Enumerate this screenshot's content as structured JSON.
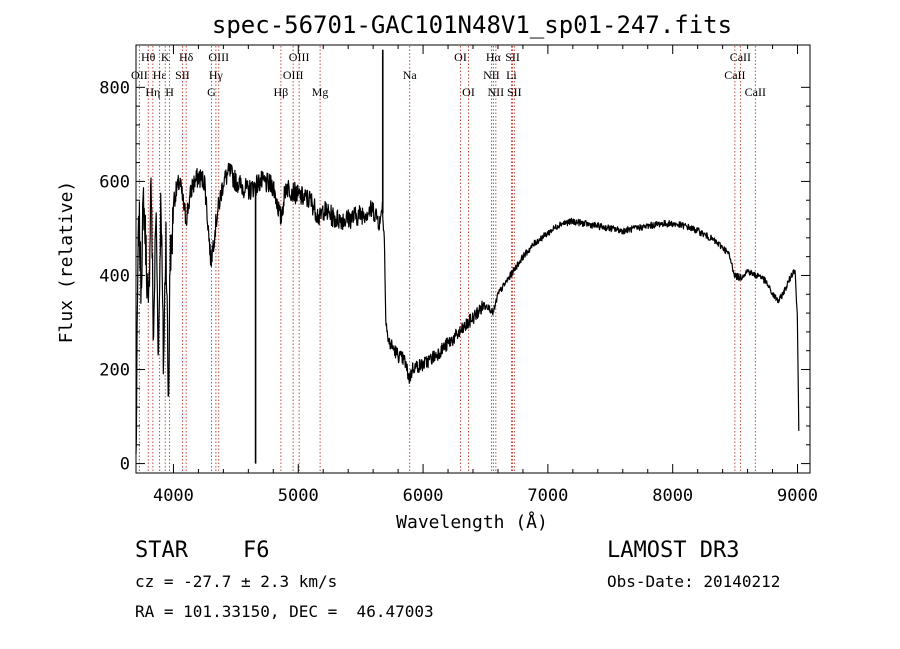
{
  "chart_data": {
    "type": "line",
    "title": "spec-56701-GAC101N48V1_sp01-247.fits",
    "xlabel": "Wavelength (Å)",
    "ylabel": "Flux (relative)",
    "xlim": [
      3700,
      9100
    ],
    "ylim": [
      -20,
      890
    ],
    "xticks": [
      4000,
      5000,
      6000,
      7000,
      8000,
      9000
    ],
    "yticks": [
      0,
      200,
      400,
      600,
      800
    ],
    "grid": false,
    "series": [
      {
        "name": "flux",
        "color": "#000000",
        "anchors": [
          [
            3700,
            10
          ],
          [
            3705,
            120
          ],
          [
            3715,
            420
          ],
          [
            3725,
            520
          ],
          [
            3740,
            380
          ],
          [
            3760,
            560
          ],
          [
            3780,
            460
          ],
          [
            3800,
            300
          ],
          [
            3820,
            620
          ],
          [
            3840,
            260
          ],
          [
            3860,
            540
          ],
          [
            3880,
            230
          ],
          [
            3900,
            580
          ],
          [
            3920,
            200
          ],
          [
            3940,
            500
          ],
          [
            3960,
            120
          ],
          [
            3975,
            480
          ],
          [
            3985,
            430
          ],
          [
            4000,
            560
          ],
          [
            4050,
            600
          ],
          [
            4100,
            520
          ],
          [
            4150,
            590
          ],
          [
            4200,
            610
          ],
          [
            4250,
            600
          ],
          [
            4300,
            430
          ],
          [
            4350,
            530
          ],
          [
            4400,
            600
          ],
          [
            4450,
            620
          ],
          [
            4500,
            600
          ],
          [
            4600,
            580
          ],
          [
            4700,
            600
          ],
          [
            4800,
            590
          ],
          [
            4861,
            520
          ],
          [
            4900,
            590
          ],
          [
            5000,
            570
          ],
          [
            5100,
            560
          ],
          [
            5172,
            520
          ],
          [
            5200,
            540
          ],
          [
            5300,
            520
          ],
          [
            5400,
            520
          ],
          [
            5500,
            530
          ],
          [
            5600,
            540
          ],
          [
            5660,
            510
          ],
          [
            5670,
            560
          ],
          [
            5690,
            480
          ],
          [
            5700,
            320
          ],
          [
            5720,
            260
          ],
          [
            5750,
            250
          ],
          [
            5800,
            230
          ],
          [
            5850,
            220
          ],
          [
            5890,
            180
          ],
          [
            5920,
            205
          ],
          [
            6000,
            210
          ],
          [
            6100,
            230
          ],
          [
            6200,
            255
          ],
          [
            6300,
            280
          ],
          [
            6400,
            310
          ],
          [
            6500,
            340
          ],
          [
            6563,
            320
          ],
          [
            6600,
            360
          ],
          [
            6700,
            400
          ],
          [
            6800,
            440
          ],
          [
            6900,
            470
          ],
          [
            7000,
            490
          ],
          [
            7100,
            510
          ],
          [
            7200,
            515
          ],
          [
            7300,
            510
          ],
          [
            7400,
            505
          ],
          [
            7500,
            500
          ],
          [
            7600,
            495
          ],
          [
            7700,
            500
          ],
          [
            7800,
            505
          ],
          [
            7900,
            510
          ],
          [
            8000,
            510
          ],
          [
            8100,
            505
          ],
          [
            8200,
            495
          ],
          [
            8300,
            480
          ],
          [
            8400,
            460
          ],
          [
            8450,
            445
          ],
          [
            8498,
            400
          ],
          [
            8542,
            395
          ],
          [
            8600,
            410
          ],
          [
            8662,
            400
          ],
          [
            8700,
            400
          ],
          [
            8750,
            385
          ],
          [
            8800,
            360
          ],
          [
            8850,
            345
          ],
          [
            8900,
            370
          ],
          [
            8950,
            400
          ],
          [
            8980,
            415
          ],
          [
            9000,
            300
          ],
          [
            9010,
            70
          ]
        ],
        "spikes": [
          [
            4658,
            0
          ],
          [
            5677,
            880
          ]
        ]
      }
    ],
    "line_markers": {
      "color": "#c0392b",
      "lines": [
        {
          "label": "Hθ",
          "wavelength": 3798,
          "row": 0
        },
        {
          "label": "OII",
          "wavelength": 3727,
          "row": 1
        },
        {
          "label": "Hη",
          "wavelength": 3835,
          "row": 2
        },
        {
          "label": "K",
          "wavelength": 3934,
          "row": 0
        },
        {
          "label": "Hε",
          "wavelength": 3889,
          "row": 1
        },
        {
          "label": "H",
          "wavelength": 3969,
          "row": 2
        },
        {
          "label": "Hδ",
          "wavelength": 4102,
          "row": 0
        },
        {
          "label": "SII",
          "wavelength": 4072,
          "row": 1
        },
        {
          "label": "OIII",
          "wavelength": 4363,
          "row": 0
        },
        {
          "label": "Hγ",
          "wavelength": 4340,
          "row": 1
        },
        {
          "label": "G",
          "wavelength": 4305,
          "row": 2
        },
        {
          "label": "Hβ",
          "wavelength": 4861,
          "row": 2
        },
        {
          "label": "OIII",
          "wavelength": 5007,
          "row": 0
        },
        {
          "label": "OIII",
          "wavelength": 4959,
          "row": 1
        },
        {
          "label": "Mg",
          "wavelength": 5175,
          "row": 2
        },
        {
          "label": "Na",
          "wavelength": 5893,
          "row": 1
        },
        {
          "label": "OI",
          "wavelength": 6300,
          "row": 0
        },
        {
          "label": "OI",
          "wavelength": 6364,
          "row": 2
        },
        {
          "label": "Hα",
          "wavelength": 6563,
          "row": 0
        },
        {
          "label": "NII",
          "wavelength": 6548,
          "row": 1
        },
        {
          "label": "NII",
          "wavelength": 6583,
          "row": 2
        },
        {
          "label": "SII",
          "wavelength": 6717,
          "row": 0
        },
        {
          "label": "Li",
          "wavelength": 6708,
          "row": 1
        },
        {
          "label": "SII",
          "wavelength": 6731,
          "row": 2
        },
        {
          "label": "CaII",
          "wavelength": 8542,
          "row": 0
        },
        {
          "label": "CaII",
          "wavelength": 8498,
          "row": 1
        },
        {
          "label": "CaII",
          "wavelength": 8662,
          "row": 2
        }
      ]
    }
  },
  "info": {
    "object_class": "STAR",
    "subclass": "F6",
    "redshift": "cz = -27.7 ± 2.3 km/s",
    "coords": "RA = 101.33150, DEC =  46.47003",
    "survey": "LAMOST DR3",
    "obs_date": "Obs-Date: 20140212"
  }
}
